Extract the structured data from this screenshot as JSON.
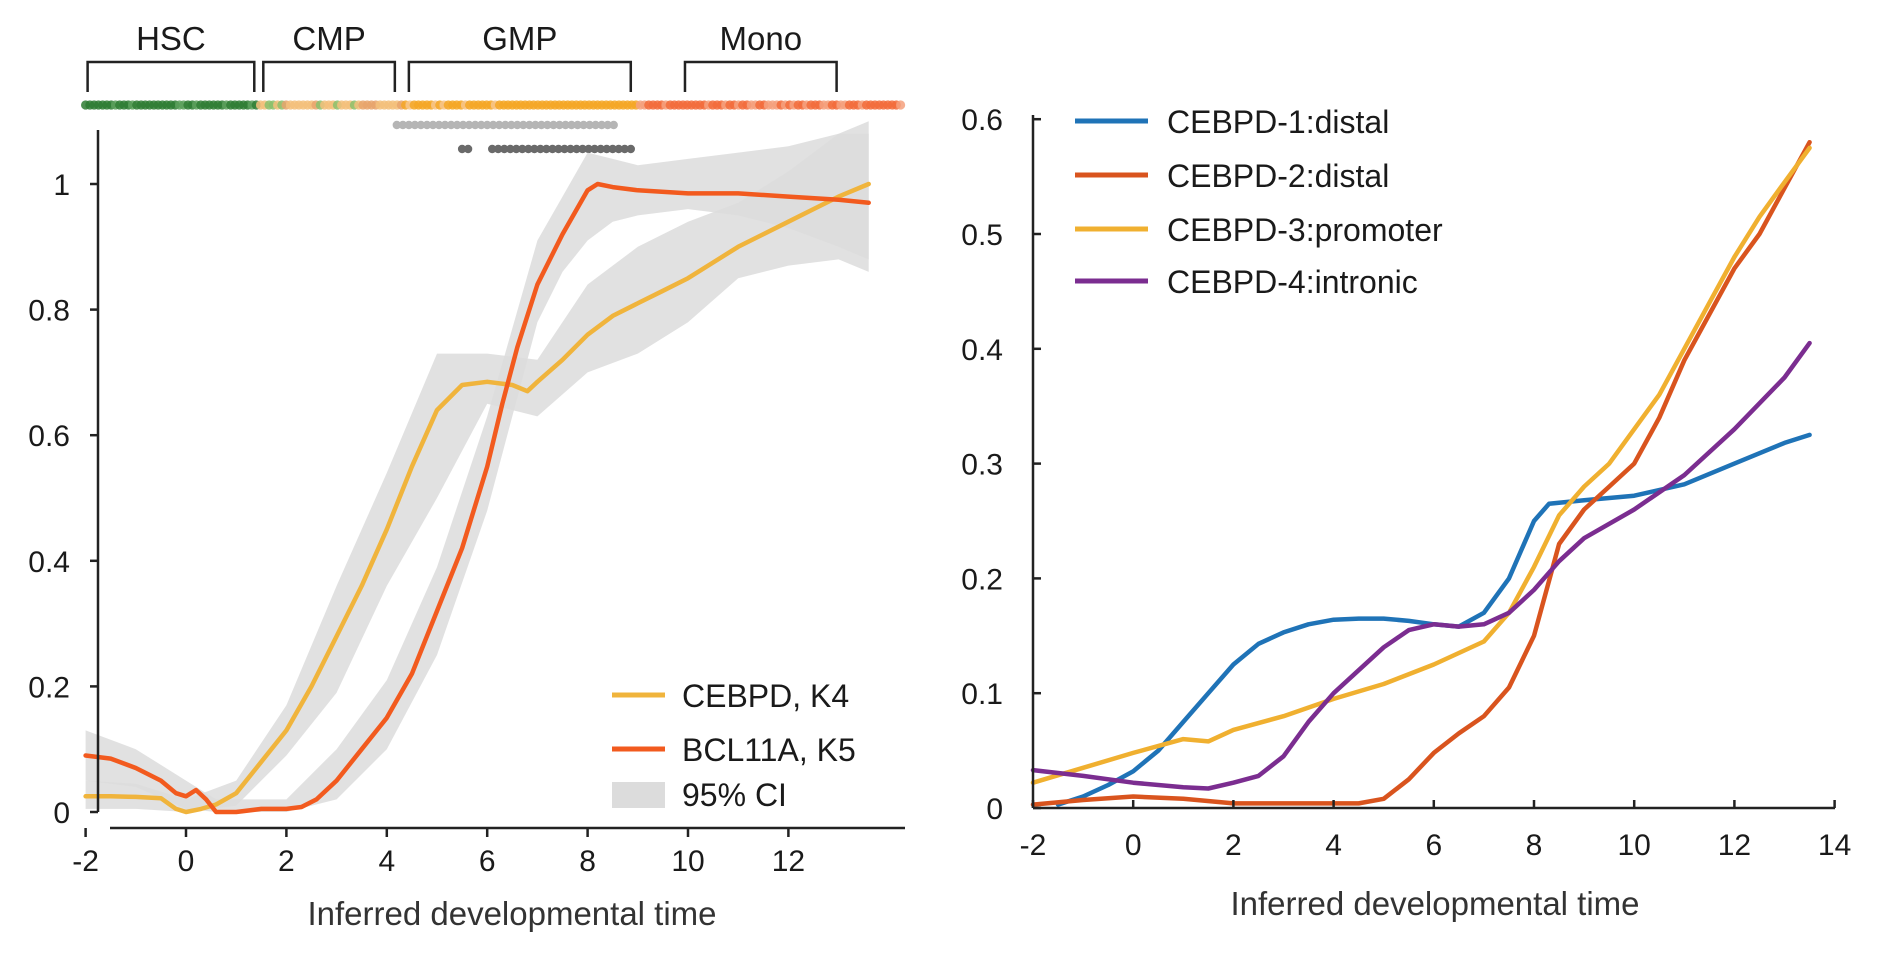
{
  "colors": {
    "cebpd_k4": "#f0b43c",
    "bcl11a_k5": "#f25a1e",
    "ci_band": "#dcdcdc",
    "cebpd_1": "#1f73b7",
    "cebpd_2": "#d9541e",
    "cebpd_3": "#f0b030",
    "cebpd_4": "#7b2d90",
    "hsc_dots": "#2e7d32",
    "cmp_dots": "#f3bf7a",
    "gmp_dots": "#f5a623",
    "mono_dots": "#f26b3a",
    "grey_dots_light": "#b5b5b5",
    "grey_dots_dark": "#6a6a6a"
  },
  "chart_data": [
    {
      "type": "line",
      "panel": "left",
      "xlabel": "Inferred developmental time",
      "ylabel": "",
      "xlim": [
        -2,
        13.6
      ],
      "ylim": [
        0,
        1.08
      ],
      "x_ticks": [
        "-2",
        "0",
        "2",
        "4",
        "6",
        "8",
        "10",
        "12"
      ],
      "y_ticks": [
        "0",
        "0.2",
        "0.4",
        "0.6",
        "0.8",
        "1"
      ],
      "grid": false,
      "legend_position": "bottom-right",
      "stages": [
        {
          "label": "HSC",
          "start": -2.0,
          "end": 1.4
        },
        {
          "label": "CMP",
          "start": 1.5,
          "end": 4.2
        },
        {
          "label": "GMP",
          "start": 4.4,
          "end": 8.9
        },
        {
          "label": "Mono",
          "start": 9.9,
          "end": 13.0
        }
      ],
      "series": [
        {
          "name": "CEBPD, K4",
          "color_key": "cebpd_k4",
          "x": [
            -2,
            -1.5,
            -1,
            -0.5,
            -0.2,
            0,
            0.3,
            0.6,
            1,
            1.5,
            2,
            2.5,
            3,
            3.5,
            4,
            4.5,
            5,
            5.5,
            6,
            6.5,
            6.8,
            7,
            7.5,
            8,
            8.5,
            9,
            9.5,
            10,
            10.5,
            11,
            11.5,
            12,
            12.5,
            13,
            13.6
          ],
          "y": [
            0.025,
            0.025,
            0.024,
            0.022,
            0.005,
            0.0,
            0.005,
            0.012,
            0.03,
            0.08,
            0.13,
            0.2,
            0.28,
            0.36,
            0.45,
            0.55,
            0.64,
            0.68,
            0.685,
            0.68,
            0.67,
            0.685,
            0.72,
            0.76,
            0.79,
            0.81,
            0.83,
            0.85,
            0.875,
            0.9,
            0.92,
            0.94,
            0.96,
            0.98,
            1.0
          ]
        },
        {
          "name": "BCL11A, K5",
          "color_key": "bcl11a_k5",
          "x": [
            -2,
            -1.5,
            -1,
            -0.5,
            -0.2,
            0,
            0.2,
            0.4,
            0.6,
            1,
            1.5,
            2,
            2.3,
            2.6,
            3,
            3.5,
            4,
            4.5,
            5,
            5.5,
            6,
            6.3,
            6.6,
            7,
            7.5,
            8,
            8.2,
            8.5,
            9,
            10,
            11,
            12,
            13,
            13.6
          ],
          "y": [
            0.09,
            0.085,
            0.07,
            0.05,
            0.03,
            0.025,
            0.035,
            0.02,
            0.0,
            0.0,
            0.005,
            0.005,
            0.008,
            0.02,
            0.05,
            0.1,
            0.15,
            0.22,
            0.32,
            0.42,
            0.55,
            0.65,
            0.74,
            0.84,
            0.92,
            0.99,
            1.0,
            0.995,
            0.99,
            0.985,
            0.985,
            0.98,
            0.975,
            0.97
          ]
        }
      ],
      "confidence_band": {
        "name": "95% CI",
        "color_key": "ci_band",
        "bands": [
          {
            "series": "CEBPD, K4",
            "x": [
              -2,
              -1,
              0,
              1,
              2,
              3,
              4,
              5,
              6,
              7,
              8,
              9,
              10,
              11,
              12,
              13,
              13.6
            ],
            "lower": [
              0.005,
              0.005,
              0.0,
              0.01,
              0.09,
              0.19,
              0.36,
              0.5,
              0.65,
              0.63,
              0.7,
              0.73,
              0.78,
              0.85,
              0.87,
              0.88,
              0.86
            ],
            "upper": [
              0.05,
              0.045,
              0.02,
              0.05,
              0.17,
              0.36,
              0.54,
              0.73,
              0.73,
              0.72,
              0.84,
              0.9,
              0.94,
              0.97,
              1.02,
              1.08,
              1.1
            ]
          },
          {
            "series": "BCL11A, K5",
            "x": [
              -2,
              -1,
              0,
              0.6,
              1,
              2,
              3,
              4,
              5,
              6,
              7,
              7.5,
              8,
              8.5,
              9,
              10,
              11,
              12,
              13,
              13.6
            ],
            "lower": [
              0.05,
              0.04,
              0.005,
              0.0,
              0.0,
              0.0,
              0.02,
              0.1,
              0.25,
              0.48,
              0.78,
              0.86,
              0.91,
              0.94,
              0.95,
              0.96,
              0.95,
              0.93,
              0.9,
              0.88
            ],
            "upper": [
              0.13,
              0.1,
              0.05,
              0.02,
              0.02,
              0.02,
              0.1,
              0.21,
              0.39,
              0.63,
              0.91,
              0.98,
              1.05,
              1.04,
              1.03,
              1.04,
              1.05,
              1.06,
              1.08,
              1.08
            ]
          }
        ]
      }
    },
    {
      "type": "line",
      "panel": "right",
      "xlabel": "Inferred developmental time",
      "ylabel": "",
      "xlim": [
        -2,
        14
      ],
      "ylim": [
        0,
        0.6
      ],
      "x_ticks": [
        "-2",
        "0",
        "2",
        "4",
        "6",
        "8",
        "10",
        "12",
        "14"
      ],
      "y_ticks": [
        "0",
        "0.1",
        "0.2",
        "0.3",
        "0.4",
        "0.5",
        "0.6"
      ],
      "grid": false,
      "legend_position": "top-left",
      "series": [
        {
          "name": "CEBPD-1:distal",
          "color_key": "cebpd_1",
          "x": [
            -1.5,
            -1,
            -0.5,
            0,
            0.5,
            1,
            1.5,
            2,
            2.5,
            3,
            3.5,
            4,
            4.5,
            5,
            5.5,
            6,
            6.5,
            7,
            7.5,
            8,
            8.3,
            9,
            10,
            11,
            12,
            13,
            13.5
          ],
          "y": [
            0.003,
            0.01,
            0.02,
            0.032,
            0.05,
            0.075,
            0.1,
            0.125,
            0.143,
            0.153,
            0.16,
            0.164,
            0.165,
            0.165,
            0.163,
            0.16,
            0.158,
            0.17,
            0.2,
            0.25,
            0.265,
            0.268,
            0.272,
            0.282,
            0.3,
            0.318,
            0.325
          ]
        },
        {
          "name": "CEBPD-2:distal",
          "color_key": "cebpd_2",
          "x": [
            -2,
            -1,
            0,
            1,
            2,
            3,
            4,
            4.5,
            5,
            5.5,
            6,
            6.5,
            7,
            7.5,
            8,
            8.5,
            9,
            9.5,
            10,
            10.5,
            11,
            11.5,
            12,
            12.5,
            13,
            13.5
          ],
          "y": [
            0.003,
            0.007,
            0.01,
            0.008,
            0.004,
            0.004,
            0.004,
            0.004,
            0.008,
            0.025,
            0.048,
            0.065,
            0.08,
            0.105,
            0.15,
            0.23,
            0.26,
            0.28,
            0.3,
            0.34,
            0.39,
            0.43,
            0.47,
            0.5,
            0.54,
            0.58
          ]
        },
        {
          "name": "CEBPD-3:promoter",
          "color_key": "cebpd_3",
          "x": [
            -2,
            -1,
            0,
            1,
            1.5,
            2,
            3,
            4,
            5,
            6,
            7,
            7.5,
            8,
            8.5,
            9,
            9.5,
            10,
            10.5,
            11,
            11.5,
            12,
            12.5,
            13,
            13.5
          ],
          "y": [
            0.022,
            0.035,
            0.048,
            0.06,
            0.058,
            0.068,
            0.08,
            0.095,
            0.108,
            0.125,
            0.145,
            0.17,
            0.21,
            0.255,
            0.28,
            0.3,
            0.33,
            0.36,
            0.4,
            0.44,
            0.48,
            0.515,
            0.545,
            0.575
          ]
        },
        {
          "name": "CEBPD-4:intronic",
          "color_key": "cebpd_4",
          "x": [
            -2,
            -1,
            0,
            1,
            1.5,
            2,
            2.5,
            3,
            3.5,
            4,
            4.5,
            5,
            5.5,
            6,
            6.5,
            7,
            7.5,
            8,
            8.5,
            9,
            10,
            11,
            12,
            13,
            13.5
          ],
          "y": [
            0.033,
            0.028,
            0.022,
            0.018,
            0.017,
            0.022,
            0.028,
            0.045,
            0.075,
            0.1,
            0.12,
            0.14,
            0.155,
            0.16,
            0.158,
            0.16,
            0.17,
            0.19,
            0.215,
            0.235,
            0.26,
            0.29,
            0.33,
            0.375,
            0.405
          ]
        }
      ]
    }
  ]
}
